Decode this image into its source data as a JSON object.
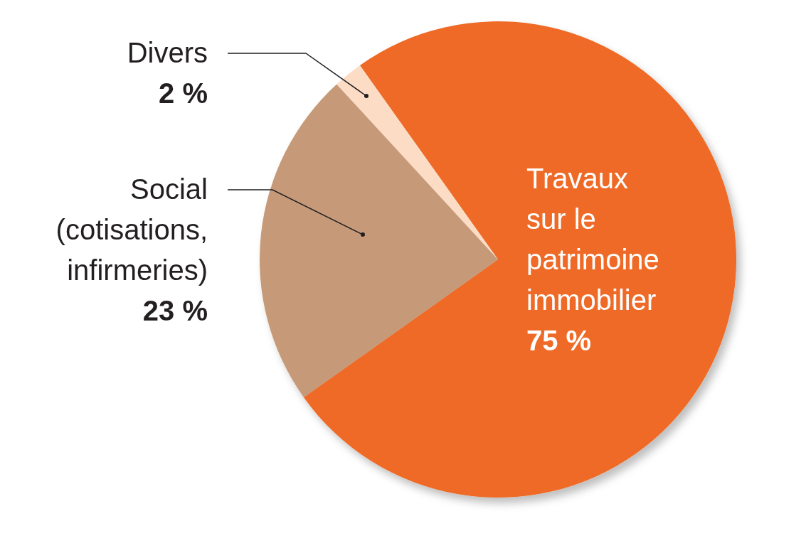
{
  "chart_data": {
    "type": "pie",
    "categories": [
      "Travaux sur le patrimoine immobilier",
      "Social (cotisations, infirmeries)",
      "Divers"
    ],
    "values": [
      75,
      23,
      2
    ],
    "colors": [
      "#ee6a25",
      "#c69a78",
      "#fcdcc4"
    ],
    "value_labels": [
      "75 %",
      "23 %",
      "2 %"
    ]
  }
}
